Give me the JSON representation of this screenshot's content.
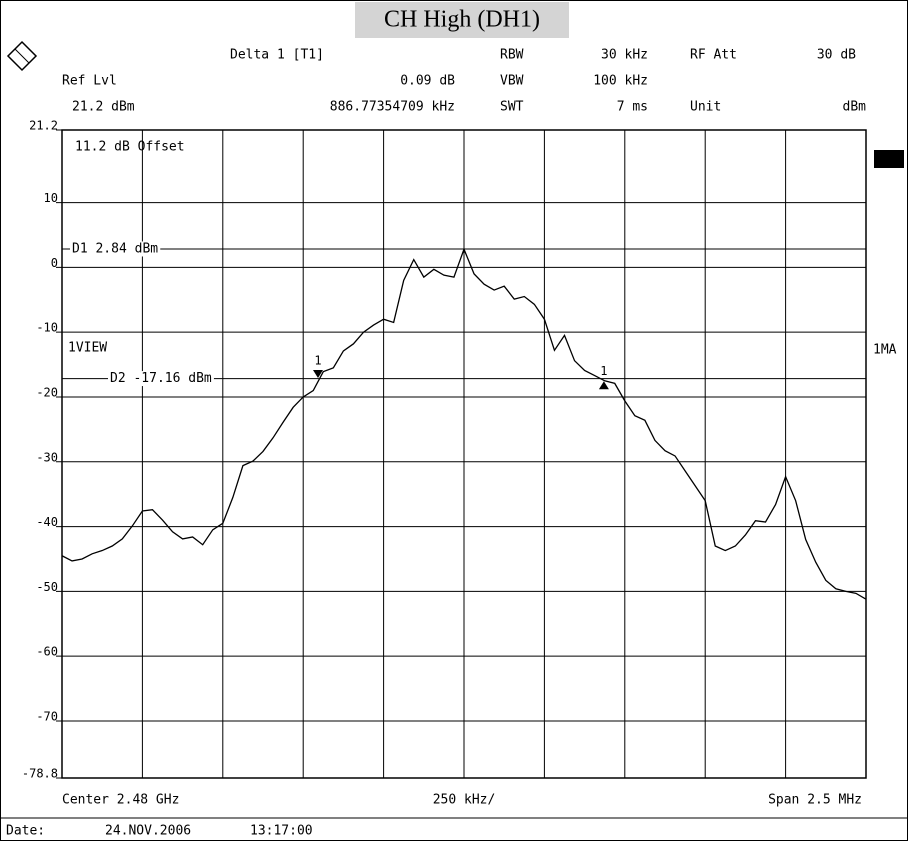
{
  "chart_data": {
    "type": "line",
    "title": "CH High (DH1)",
    "info": {
      "delta": "Delta 1 [T1]",
      "rbw_label": "RBW",
      "rbw": "30 kHz",
      "att_label": "RF Att",
      "att": "30 dB",
      "ref_label": "Ref Lvl",
      "delta_level": "0.09 dB",
      "vbw_label": "VBW",
      "vbw": "100 kHz",
      "ref_level": "21.2 dBm",
      "delta_freq": "886.77354709 kHz",
      "swt_label": "SWT",
      "swt": "7 ms",
      "unit_label": "Unit",
      "unit": "dBm",
      "offset": "11.2 dB Offset",
      "view": "1VIEW",
      "mode": "1MA",
      "center": "Center 2.48 GHz",
      "div": "250 kHz/",
      "span": "Span 2.5 MHz",
      "date_label": "Date:",
      "date": "24.NOV.2006",
      "time": "13:17:00"
    },
    "xlim": [
      2478.75,
      2481.25
    ],
    "ylim": [
      -78.8,
      21.2
    ],
    "yticks": [
      21.2,
      10,
      0,
      -10,
      -20,
      -30,
      -40,
      -50,
      -60,
      -70,
      -78.8
    ],
    "grid": true,
    "series": [
      {
        "color": "#000000",
        "values": [
          -44.5,
          -45.3,
          -45.0,
          -44.2,
          -43.7,
          -43.0,
          -41.9,
          -39.9,
          -37.6,
          -37.4,
          -39.0,
          -40.8,
          -41.9,
          -41.6,
          -42.8,
          -40.5,
          -39.5,
          -35.5,
          -30.6,
          -29.9,
          -28.4,
          -26.3,
          -23.9,
          -21.6,
          -20.0,
          -19.0,
          -16.1,
          -15.5,
          -12.9,
          -11.8,
          -10.0,
          -8.9,
          -8.0,
          -8.5,
          -2.0,
          1.2,
          -1.5,
          -0.3,
          -1.2,
          -1.5,
          2.8,
          -1.0,
          -2.6,
          -3.5,
          -2.9,
          -4.9,
          -4.5,
          -5.7,
          -8.0,
          -12.8,
          -10.5,
          -14.4,
          -15.9,
          -16.7,
          -17.5,
          -17.9,
          -20.6,
          -22.9,
          -23.6,
          -26.7,
          -28.3,
          -29.1,
          -31.4,
          -33.7,
          -36.0,
          -43.0,
          -43.7,
          -43.0,
          -41.3,
          -39.1,
          -39.3,
          -36.6,
          -32.3,
          -36.0,
          -42.0,
          -45.5,
          -48.3,
          -49.6,
          -50.0,
          -50.3,
          -51.2
        ]
      }
    ],
    "ref_lines": [
      {
        "label": "D1 2.84 dBm",
        "value": 2.84
      },
      {
        "label": "D2 -17.16 dBm",
        "value": -17.16
      }
    ],
    "markers": [
      {
        "label": "1",
        "x": 2479.546,
        "value": -16.6,
        "shape": "down"
      },
      {
        "label": "1",
        "x": 2480.435,
        "value": -18.2,
        "shape": "up"
      }
    ]
  }
}
